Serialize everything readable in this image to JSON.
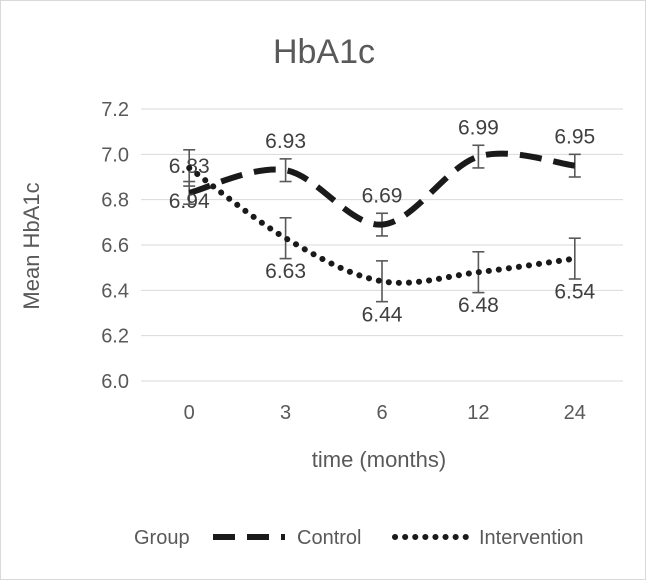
{
  "chart_data": {
    "type": "line",
    "title": "HbA1c",
    "xlabel": "time (months)",
    "ylabel": "Mean HbA1c",
    "categories": [
      "0",
      "3",
      "6",
      "12",
      "24"
    ],
    "ylim": [
      6.0,
      7.2
    ],
    "yticks": [
      "6.0",
      "6.2",
      "6.4",
      "6.6",
      "6.8",
      "7.0",
      "7.2"
    ],
    "legend": {
      "title": "Group",
      "placement": "bottom"
    },
    "series": [
      {
        "name": "Control",
        "style": "dashed",
        "color": "#1a1a1a",
        "values": [
          6.83,
          6.93,
          6.69,
          6.99,
          6.95
        ],
        "labels": [
          "6.83",
          "6.93",
          "6.69",
          "6.99",
          "6.95"
        ],
        "error": [
          0.05,
          0.05,
          0.05,
          0.05,
          0.05
        ]
      },
      {
        "name": "Intervention",
        "style": "dotted",
        "color": "#1a1a1a",
        "values": [
          6.94,
          6.63,
          6.44,
          6.48,
          6.54
        ],
        "labels": [
          "6.94",
          "6.63",
          "6.44",
          "6.48",
          "6.54"
        ],
        "error": [
          0.08,
          0.09,
          0.09,
          0.09,
          0.09
        ]
      }
    ]
  }
}
